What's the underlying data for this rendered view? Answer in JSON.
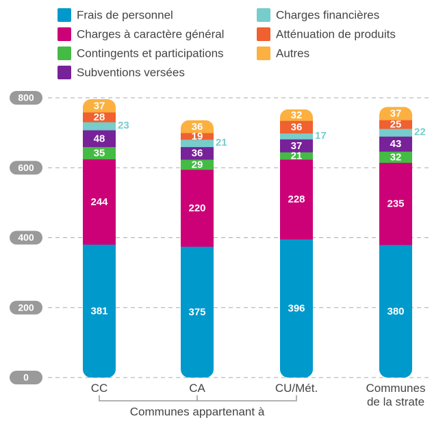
{
  "chart_data": {
    "type": "stacked_bar",
    "categories": [
      "CC",
      "CA",
      "CU/Mét.",
      "Communes de la strate"
    ],
    "series": [
      {
        "name": "Frais de personnel",
        "color": "#0099cc",
        "values": [
          381,
          375,
          396,
          380
        ]
      },
      {
        "name": "Charges à caractère général",
        "color": "#cc0077",
        "values": [
          244,
          220,
          228,
          235
        ]
      },
      {
        "name": "Contingents et participations",
        "color": "#44bb44",
        "values": [
          35,
          29,
          21,
          32
        ]
      },
      {
        "name": "Subventions versées",
        "color": "#772299",
        "values": [
          48,
          36,
          37,
          43
        ]
      },
      {
        "name": "Charges financières",
        "color": "#77cccc",
        "values": [
          23,
          21,
          17,
          22
        ]
      },
      {
        "name": "Atténuation de produits",
        "color": "#f06030",
        "values": [
          28,
          19,
          36,
          25
        ]
      },
      {
        "name": "Autres",
        "color": "#fbb040",
        "values": [
          37,
          36,
          32,
          37
        ]
      }
    ],
    "group_label": "Communes appartenant à",
    "ylim": [
      0,
      800
    ],
    "yticks": [
      0,
      200,
      400,
      600,
      800
    ],
    "grid": true
  }
}
